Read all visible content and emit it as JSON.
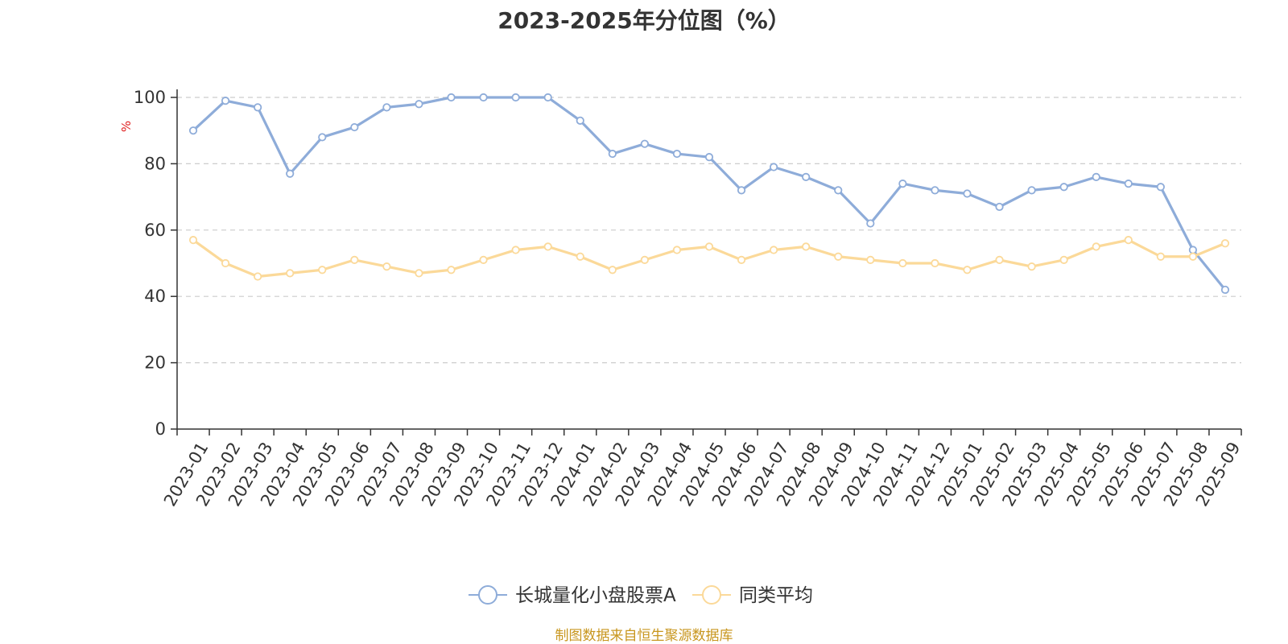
{
  "chart_data": {
    "type": "line",
    "title": "2023-2025年分位图（%）",
    "ylabel": "%",
    "ylim": [
      0,
      100
    ],
    "yticks": [
      0,
      20,
      40,
      60,
      80,
      100
    ],
    "grid": true,
    "legend_position": "bottom-center",
    "categories": [
      "2023-01",
      "2023-02",
      "2023-03",
      "2023-04",
      "2023-05",
      "2023-06",
      "2023-07",
      "2023-08",
      "2023-09",
      "2023-10",
      "2023-11",
      "2023-12",
      "2024-01",
      "2024-02",
      "2024-03",
      "2024-04",
      "2024-05",
      "2024-06",
      "2024-07",
      "2024-08",
      "2024-09",
      "2024-10",
      "2024-11",
      "2024-12",
      "2025-01",
      "2025-02",
      "2025-03",
      "2025-04",
      "2025-05",
      "2025-06",
      "2025-07",
      "2025-08",
      "2025-09"
    ],
    "series": [
      {
        "name": "长城量化小盘股票A",
        "color": "#8eacd9",
        "values": [
          90,
          99,
          97,
          77,
          88,
          91,
          97,
          98,
          100,
          100,
          100,
          100,
          93,
          83,
          86,
          83,
          82,
          72,
          79,
          76,
          72,
          62,
          74,
          72,
          71,
          67,
          72,
          73,
          76,
          74,
          73,
          54,
          42
        ]
      },
      {
        "name": "同类平均",
        "color": "#fbd999",
        "values": [
          57,
          50,
          46,
          47,
          48,
          51,
          49,
          47,
          48,
          51,
          54,
          55,
          52,
          48,
          51,
          54,
          55,
          51,
          54,
          55,
          52,
          51,
          50,
          50,
          48,
          51,
          49,
          51,
          55,
          57,
          52,
          52,
          56
        ]
      }
    ]
  },
  "source": "制图数据来自恒生聚源数据库"
}
